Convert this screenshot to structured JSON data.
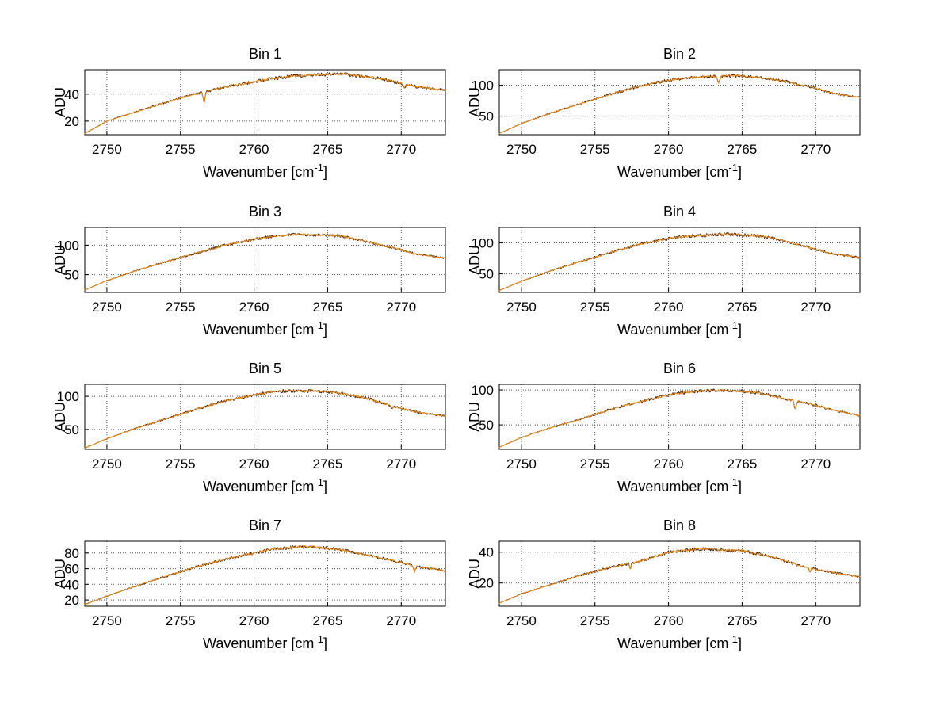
{
  "figure": {
    "background": "#ffffff",
    "grid_layout": "4 rows x 2 columns"
  },
  "colors": {
    "trace_primary": "#f28a0e",
    "trace_secondary": "#3f1f0e",
    "axis": "#000000",
    "grid": "#555555",
    "text": "#000000"
  },
  "labels": {
    "xlabel_main": "Wavenumber [cm",
    "xlabel_sup": "-1",
    "xlabel_close": "]",
    "ylabel": "ADU"
  },
  "chart_data": [
    {
      "type": "line",
      "title": "Bin 1",
      "xlabel": "Wavenumber [cm^-1]",
      "ylabel": "ADU",
      "xlim": [
        2748.5,
        2773
      ],
      "ylim": [
        10,
        58
      ],
      "xticks": [
        2750,
        2755,
        2760,
        2765,
        2770
      ],
      "yticks": [
        20,
        40
      ],
      "grid": true,
      "x": [
        2748.5,
        2750,
        2752,
        2754,
        2756,
        2758,
        2760,
        2761,
        2762,
        2763,
        2764,
        2765,
        2766,
        2767,
        2768,
        2769,
        2770,
        2771,
        2773
      ],
      "y": [
        11,
        20,
        27,
        34,
        40,
        45,
        49,
        51,
        52.5,
        53.5,
        54,
        54.5,
        55,
        53.5,
        52.5,
        50.5,
        48,
        45.5,
        43
      ],
      "noise": 0.9,
      "dips": [
        {
          "x": 2756.6,
          "w": 0.15,
          "d": 8
        },
        {
          "x": 2770.2,
          "w": 0.15,
          "d": 3
        }
      ]
    },
    {
      "type": "line",
      "title": "Bin 2",
      "xlabel": "Wavenumber [cm^-1]",
      "ylabel": "ADU",
      "xlim": [
        2748.5,
        2773
      ],
      "ylim": [
        20,
        125
      ],
      "xticks": [
        2750,
        2755,
        2760,
        2765,
        2770
      ],
      "yticks": [
        50,
        100
      ],
      "grid": true,
      "x": [
        2748.5,
        2750,
        2752,
        2754,
        2756,
        2758,
        2760,
        2761,
        2762,
        2763,
        2764,
        2765,
        2766,
        2767,
        2768,
        2769,
        2770,
        2771,
        2773
      ],
      "y": [
        22,
        38,
        55,
        70,
        85,
        98,
        108,
        111,
        113,
        114,
        115,
        115,
        113,
        110,
        106,
        100,
        95,
        88,
        80
      ],
      "noise": 1.8,
      "dips": [
        {
          "x": 2763.4,
          "w": 0.15,
          "d": 11
        }
      ]
    },
    {
      "type": "line",
      "title": "Bin 3",
      "xlabel": "Wavenumber [cm^-1]",
      "ylabel": "ADU",
      "xlim": [
        2748.5,
        2773
      ],
      "ylim": [
        20,
        130
      ],
      "xticks": [
        2750,
        2755,
        2760,
        2765,
        2770
      ],
      "yticks": [
        50,
        100
      ],
      "grid": true,
      "x": [
        2748.5,
        2750,
        2752,
        2754,
        2756,
        2758,
        2760,
        2761,
        2762,
        2763,
        2764,
        2765,
        2766,
        2767,
        2768,
        2769,
        2770,
        2771,
        2773
      ],
      "y": [
        24,
        40,
        57,
        72,
        86,
        100,
        110,
        114,
        117,
        118,
        117.5,
        117,
        115,
        110,
        104,
        98,
        92,
        85,
        78
      ],
      "noise": 1.9,
      "dips": []
    },
    {
      "type": "line",
      "title": "Bin 4",
      "xlabel": "Wavenumber [cm^-1]",
      "ylabel": "ADU",
      "xlim": [
        2748.5,
        2773
      ],
      "ylim": [
        20,
        125
      ],
      "xticks": [
        2750,
        2755,
        2760,
        2765,
        2770
      ],
      "yticks": [
        50,
        100
      ],
      "grid": true,
      "x": [
        2748.5,
        2750,
        2752,
        2754,
        2756,
        2758,
        2760,
        2761,
        2762,
        2763,
        2764,
        2765,
        2766,
        2767,
        2768,
        2769,
        2770,
        2771,
        2773
      ],
      "y": [
        23,
        38,
        55,
        70,
        84,
        98,
        107,
        110,
        112,
        113,
        114,
        113,
        112,
        108,
        102,
        96,
        90,
        83,
        76
      ],
      "noise": 1.9,
      "dips": []
    },
    {
      "type": "line",
      "title": "Bin 5",
      "xlabel": "Wavenumber [cm^-1]",
      "ylabel": "ADU",
      "xlim": [
        2748.5,
        2773
      ],
      "ylim": [
        20,
        118
      ],
      "xticks": [
        2750,
        2755,
        2760,
        2765,
        2770
      ],
      "yticks": [
        50,
        100
      ],
      "grid": true,
      "x": [
        2748.5,
        2750,
        2752,
        2754,
        2756,
        2758,
        2760,
        2761,
        2762,
        2763,
        2764,
        2765,
        2766,
        2767,
        2768,
        2769,
        2770,
        2771,
        2773
      ],
      "y": [
        22,
        36,
        52,
        66,
        80,
        93,
        102,
        106,
        108,
        108,
        108,
        107,
        104,
        100,
        95,
        88,
        82,
        76,
        70
      ],
      "noise": 1.8,
      "dips": [
        {
          "x": 2769.4,
          "w": 0.15,
          "d": 4
        }
      ]
    },
    {
      "type": "line",
      "title": "Bin 6",
      "xlabel": "Wavenumber [cm^-1]",
      "ylabel": "ADU",
      "xlim": [
        2748.5,
        2773
      ],
      "ylim": [
        15,
        108
      ],
      "xticks": [
        2750,
        2755,
        2760,
        2765,
        2770
      ],
      "yticks": [
        50,
        100
      ],
      "grid": true,
      "x": [
        2748.5,
        2750,
        2752,
        2754,
        2756,
        2758,
        2760,
        2761,
        2762,
        2763,
        2764,
        2765,
        2766,
        2767,
        2768,
        2769,
        2770,
        2771,
        2773
      ],
      "y": [
        18,
        32,
        46,
        58,
        72,
        83,
        93,
        96,
        98,
        99,
        99,
        98,
        96,
        92,
        87,
        83,
        78,
        72,
        63
      ],
      "noise": 1.6,
      "dips": [
        {
          "x": 2768.6,
          "w": 0.15,
          "d": 13
        }
      ]
    },
    {
      "type": "line",
      "title": "Bin 7",
      "xlabel": "Wavenumber [cm^-1]",
      "ylabel": "ADU",
      "xlim": [
        2748.5,
        2773
      ],
      "ylim": [
        12,
        95
      ],
      "xticks": [
        2750,
        2755,
        2760,
        2765,
        2770
      ],
      "yticks": [
        20,
        40,
        60,
        80
      ],
      "grid": true,
      "x": [
        2748.5,
        2750,
        2752,
        2754,
        2756,
        2758,
        2760,
        2761,
        2762,
        2763,
        2764,
        2765,
        2766,
        2767,
        2768,
        2769,
        2770,
        2771,
        2773
      ],
      "y": [
        14,
        25,
        38,
        50,
        62,
        72,
        80,
        84,
        86,
        88,
        88,
        86,
        84,
        80,
        76,
        72,
        68,
        63,
        57
      ],
      "noise": 1.5,
      "dips": [
        {
          "x": 2770.9,
          "w": 0.15,
          "d": 7
        }
      ]
    },
    {
      "type": "line",
      "title": "Bin 8",
      "xlabel": "Wavenumber [cm^-1]",
      "ylabel": "ADU",
      "xlim": [
        2748.5,
        2773
      ],
      "ylim": [
        5,
        47
      ],
      "xticks": [
        2750,
        2755,
        2760,
        2765,
        2770
      ],
      "yticks": [
        20,
        40
      ],
      "grid": true,
      "x": [
        2748.5,
        2750,
        2752,
        2754,
        2756,
        2758,
        2760,
        2761,
        2762,
        2763,
        2764,
        2765,
        2766,
        2767,
        2768,
        2769,
        2770,
        2771,
        2773
      ],
      "y": [
        7,
        13,
        19,
        25,
        30,
        34,
        40,
        41,
        42,
        42,
        41,
        41,
        39,
        37,
        34,
        31,
        29,
        27,
        24
      ],
      "noise": 0.8,
      "dips": [
        {
          "x": 2757.4,
          "w": 0.12,
          "d": 4
        },
        {
          "x": 2769.6,
          "w": 0.12,
          "d": 3
        }
      ]
    }
  ]
}
